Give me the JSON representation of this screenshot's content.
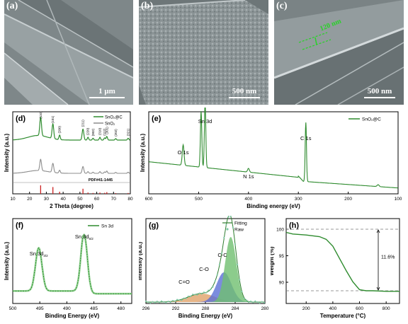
{
  "panels": {
    "a": {
      "label": "(a)",
      "scale": "1 μm"
    },
    "b": {
      "label": "(b)",
      "scale": "500 nm"
    },
    "c": {
      "label": "(c)",
      "scale": "500 nm",
      "measure": "120 nm"
    },
    "d": {
      "label": "(d)"
    },
    "e": {
      "label": "(e)"
    },
    "f": {
      "label": "(f)"
    },
    "g": {
      "label": "(g)"
    },
    "h": {
      "label": "(h)"
    }
  },
  "colors": {
    "green": "#2e8b2e",
    "gray": "#8c8c8c",
    "red": "#cc2222",
    "light_green": "#8fcf8f"
  },
  "chart_data": [
    {
      "id": "d",
      "type": "line",
      "xlabel": "2 Theta (degree)",
      "ylabel": "Intensity (a.u.)",
      "xlim": [
        10,
        80
      ],
      "xticks": [
        10,
        20,
        30,
        40,
        50,
        60,
        70,
        80
      ],
      "legend": [
        "SnO₂@C",
        "SnO₂"
      ],
      "legend_position": "top-right",
      "reference": "PDF#41-1445",
      "peaks": [
        {
          "x": 26.6,
          "label": "(110)"
        },
        {
          "x": 33.9,
          "label": "(101)"
        },
        {
          "x": 37.9,
          "label": "(200)"
        },
        {
          "x": 51.8,
          "label": "(211)"
        },
        {
          "x": 54.8,
          "label": "(220)"
        },
        {
          "x": 57.8,
          "label": "(002)"
        },
        {
          "x": 61.9,
          "label": "(310)"
        },
        {
          "x": 64.7,
          "label": "(112)"
        },
        {
          "x": 66.0,
          "label": "(301)"
        },
        {
          "x": 71.3,
          "label": "(202)"
        },
        {
          "x": 78.7,
          "label": "(321)"
        }
      ],
      "ref_lines": [
        26.6,
        33.9,
        37.9,
        51.8,
        54.8,
        57.8,
        61.9,
        64.7,
        66.0,
        71.3,
        78.7
      ],
      "ref_heights": [
        1.0,
        0.8,
        0.25,
        0.6,
        0.15,
        0.1,
        0.15,
        0.12,
        0.2,
        0.08,
        0.1
      ]
    },
    {
      "id": "e",
      "type": "line",
      "xlabel": "Binding energy (eV)",
      "ylabel": "Intensity (a.u.)",
      "xlim": [
        600,
        100
      ],
      "xticks": [
        600,
        500,
        400,
        300,
        200,
        100
      ],
      "legend": [
        "SnO₂@C"
      ],
      "legend_position": "top-right",
      "annotations": [
        {
          "x": 531,
          "label": "O 1s"
        },
        {
          "x": 487,
          "label": "Sn 3d"
        },
        {
          "x": 400,
          "label": "N 1s"
        },
        {
          "x": 285,
          "label": "C 1s"
        }
      ]
    },
    {
      "id": "f",
      "type": "line",
      "xlabel": "Binding Energy (eV)",
      "ylabel": "Intensity (a.u.)",
      "xlim": [
        500,
        478
      ],
      "xticks": [
        500,
        495,
        490,
        485,
        480
      ],
      "legend": [
        "Sn 3d"
      ],
      "legend_position": "top-right",
      "peaks": [
        {
          "x": 495.2,
          "label": "Sn 3d",
          "sub": "3/2"
        },
        {
          "x": 486.8,
          "label": "Sn 3d",
          "sub": "5/2"
        }
      ]
    },
    {
      "id": "g",
      "type": "area",
      "xlabel": "Binding Energy (eV)",
      "ylabel": "Intensity (a.u.)",
      "xlim": [
        296,
        280
      ],
      "xticks": [
        296,
        292,
        288,
        284,
        280
      ],
      "legend": [
        "Fitting",
        "Raw"
      ],
      "legend_position": "top-right",
      "components": [
        {
          "label": "C-C",
          "x": 284.6,
          "color": "#6fbf6f"
        },
        {
          "label": "C-O",
          "x": 285.5,
          "color": "#5b6fd6"
        },
        {
          "label": "C=O",
          "x": 288.5,
          "color": "#e0a36a"
        }
      ]
    },
    {
      "id": "h",
      "type": "line",
      "xlabel": "Temperature (°C)",
      "ylabel": "Weight (%)",
      "xlim": [
        50,
        900
      ],
      "ylim": [
        86,
        102
      ],
      "xticks": [
        200,
        400,
        600,
        800
      ],
      "yticks": [
        90,
        95,
        100
      ],
      "annotation": "11.6%",
      "x": [
        50,
        100,
        200,
        300,
        350,
        400,
        450,
        500,
        550,
        600,
        650,
        700,
        800,
        900
      ],
      "y": [
        99.4,
        99.1,
        98.9,
        98.6,
        98.1,
        96.8,
        94.5,
        92.2,
        90.1,
        88.6,
        88.4,
        88.4,
        88.3,
        88.3
      ]
    }
  ]
}
